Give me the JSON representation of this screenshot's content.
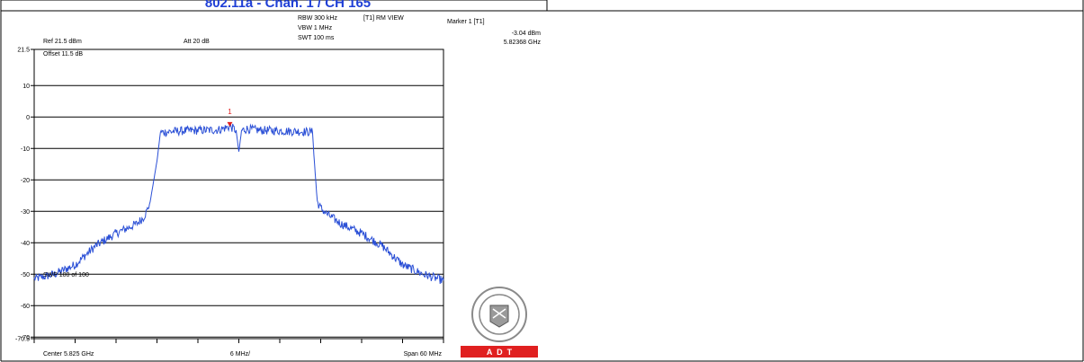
{
  "header": {
    "caption": "802.11a - Chan. 1 / CH 165"
  },
  "settings": {
    "rbw": "RBW 300 kHz",
    "vbw": "VBW 1 MHz",
    "swt": "SWT 100 ms",
    "trace_mode": "[T1] RM VIEW",
    "ref": "Ref 21.5 dBm",
    "att": "Att  20 dB",
    "offset": "Offset 11.5 dB",
    "sweep": "SWP 100 of 100",
    "center": "Center 5.825 GHz",
    "div": "6 MHz/",
    "span": "Span 60 MHz"
  },
  "marker": {
    "title": "Marker 1 [T1]",
    "level": "-3.04 dBm",
    "freq": "5.82368 GHz",
    "label": "1"
  },
  "logo": {
    "text": "A  D  T",
    "color": "#e02020"
  },
  "chart_data": {
    "type": "line",
    "xlabel": "",
    "ylabel": "",
    "x_unit": "GHz",
    "y_unit": "dBm",
    "xlim": [
      5.795,
      5.855
    ],
    "ylim": [
      -70.5,
      21.5
    ],
    "y_tick_labels": [
      "21.5",
      "10",
      "0",
      "-10",
      "-20",
      "-30",
      "-40",
      "-50",
      "-60",
      "-70",
      "-70.5"
    ],
    "y_tick_values": [
      21.5,
      10,
      0,
      -10,
      -20,
      -30,
      -40,
      -50,
      -60,
      -70,
      -70.5
    ],
    "grid": true,
    "trace_color": "#2a4fd6",
    "series": [
      {
        "x": [
          5.795,
          5.798,
          5.801,
          5.804,
          5.807,
          5.81,
          5.811,
          5.8115,
          5.812,
          5.813,
          5.8135,
          5.814,
          5.816,
          5.818,
          5.82,
          5.822,
          5.8237,
          5.8246,
          5.825,
          5.8254,
          5.8262,
          5.828,
          5.83,
          5.832,
          5.834,
          5.8358,
          5.836,
          5.8365,
          5.837,
          5.838,
          5.839,
          5.84,
          5.843,
          5.846,
          5.849,
          5.852,
          5.855
        ],
        "y": [
          -51.5,
          -50,
          -47,
          -41,
          -37,
          -34,
          -32,
          -30,
          -27,
          -14,
          -5,
          -4.8,
          -4.5,
          -4.3,
          -4.2,
          -4.1,
          -3.04,
          -4.2,
          -11,
          -4.3,
          -3.8,
          -4.2,
          -4.3,
          -4.5,
          -4.6,
          -4.8,
          -12,
          -27,
          -29,
          -31,
          -32.5,
          -34,
          -37,
          -41,
          -47,
          -50,
          -52
        ]
      }
    ],
    "marker": {
      "x": 5.82368,
      "y": -3.04,
      "label": "1"
    }
  }
}
